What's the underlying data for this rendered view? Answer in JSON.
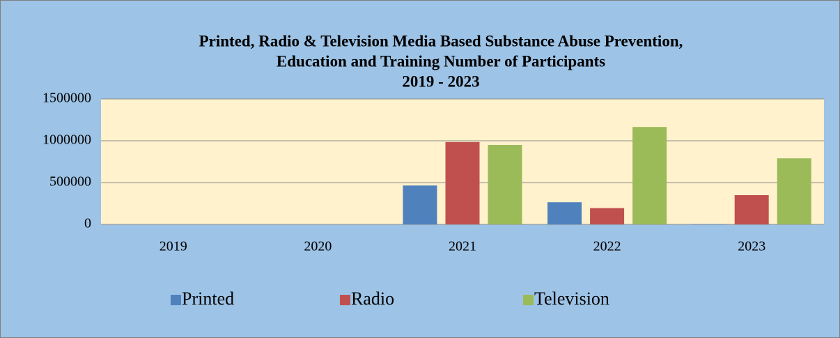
{
  "chart_data": {
    "type": "bar",
    "title": [
      "Printed, Radio & Television Media Based Substance Abuse Prevention,",
      "Education and Training Number of Participants",
      "2019 - 2023"
    ],
    "categories": [
      "2019",
      "2020",
      "2021",
      "2022",
      "2023"
    ],
    "series": [
      {
        "name": "Printed",
        "color": "#4f81bd",
        "values": [
          0,
          0,
          465000,
          265000,
          5000
        ]
      },
      {
        "name": "Radio",
        "color": "#c0504d",
        "values": [
          0,
          0,
          985000,
          195000,
          350000
        ]
      },
      {
        "name": "Television",
        "color": "#9bbb59",
        "values": [
          0,
          0,
          950000,
          1165000,
          790000
        ]
      }
    ],
    "ylim": [
      0,
      1500000
    ],
    "yticks": [
      0,
      500000,
      1000000,
      1500000
    ],
    "grid": true,
    "legend": "bottom"
  }
}
